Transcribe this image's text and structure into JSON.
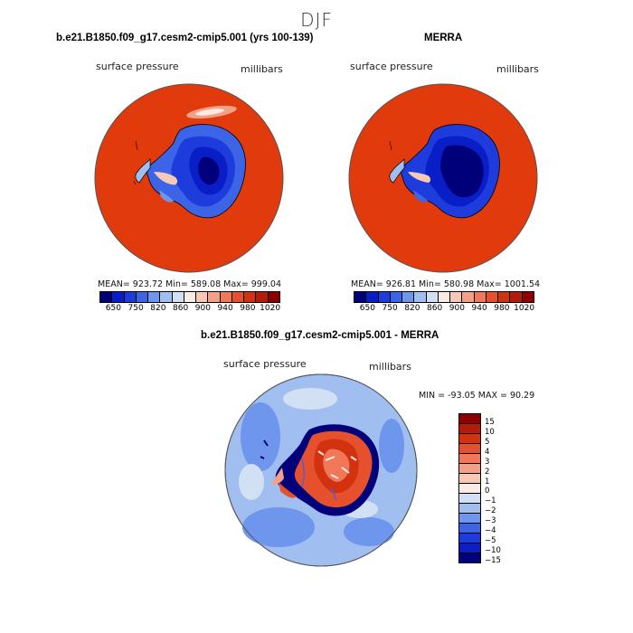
{
  "figure_title": "DJF",
  "panels": {
    "left": {
      "title": "b.e21.B1850.f09_g17.cesm2-cmip5.001 (yrs 100-139)",
      "variable": "surface pressure",
      "units": "millibars",
      "stats": "MEAN= 923.72   Min= 589.08   Max= 999.04"
    },
    "right": {
      "title": "MERRA",
      "variable": "surface pressure",
      "units": "millibars",
      "stats": "MEAN= 926.81   Min= 580.98   Max= 1001.54"
    },
    "diff": {
      "title": "b.e21.B1850.f09_g17.cesm2-cmip5.001 - MERRA",
      "variable": "surface pressure",
      "units": "millibars",
      "stats": "MIN = -93.05  MAX =  90.29"
    }
  },
  "pressure_colorbar": {
    "labels": [
      "650",
      "750",
      "820",
      "860",
      "900",
      "940",
      "980",
      "1020"
    ],
    "colors": [
      "#00007a",
      "#0a1ec8",
      "#1e3cdc",
      "#3c64e6",
      "#6e96ec",
      "#a0bef0",
      "#d2e0f4",
      "#faece4",
      "#f8c8b4",
      "#f4a086",
      "#f07858",
      "#e6502c",
      "#d2320f",
      "#b41c0a",
      "#8c0000"
    ]
  },
  "diff_colorbar": {
    "labels": [
      "15",
      "10",
      "5",
      "4",
      "3",
      "2",
      "1",
      "0",
      "-1",
      "-2",
      "-3",
      "-4",
      "-5",
      "-10",
      "-15"
    ],
    "colors": [
      "#8c0000",
      "#b41c0a",
      "#d2320f",
      "#e6502c",
      "#f07858",
      "#f4a086",
      "#f8c8b4",
      "#faece4",
      "#d2e0f4",
      "#a0bef0",
      "#6e96ec",
      "#3c64e6",
      "#1e3cdc",
      "#0a1ec8",
      "#00007a"
    ]
  }
}
